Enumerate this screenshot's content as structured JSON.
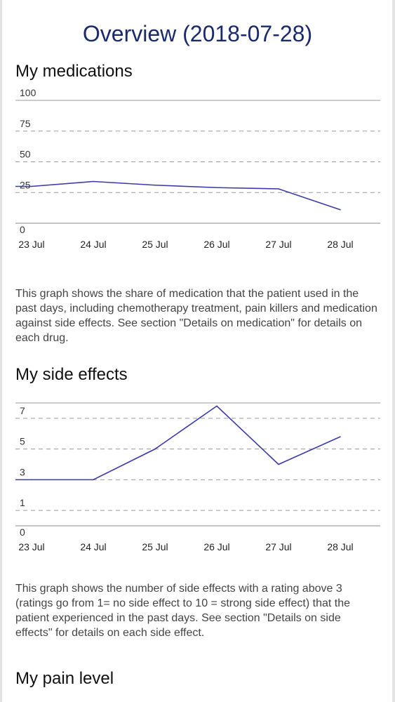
{
  "page": {
    "title": "Overview (2018-07-28)"
  },
  "sections": {
    "medications": {
      "title": "My medications",
      "description": "This graph shows the share of medication that the patient used in the past days, including chemotherapy treatment, pain killers and medication against side effects. See section \"Details on medication\" for details on each drug."
    },
    "side_effects": {
      "title": "My side effects",
      "description": "This graph shows the number of side effects with a rating above 3 (ratings go from 1= no side effect to 10 = strong side effect) that the patient experienced in the past days. See section \"Details on side effects\" for details on each side effect."
    },
    "pain": {
      "title": "My pain level"
    }
  },
  "colors": {
    "line": "#3a3aa8",
    "title": "#1a2a6c",
    "grid": "#9a9a9a"
  },
  "chart_data": [
    {
      "type": "line",
      "categories": [
        "23 Jul",
        "24 Jul",
        "25 Jul",
        "26 Jul",
        "27 Jul",
        "28 Jul"
      ],
      "series": [
        {
          "values": [
            30,
            34,
            31,
            29,
            28,
            11
          ]
        }
      ],
      "yticks": [
        0,
        25,
        50,
        75,
        100
      ],
      "ylim": [
        0,
        100
      ],
      "grid": "dashed"
    },
    {
      "type": "line",
      "categories": [
        "23 Jul",
        "24 Jul",
        "25 Jul",
        "26 Jul",
        "27 Jul",
        "28 Jul"
      ],
      "series": [
        {
          "values": [
            3,
            3,
            5,
            7.8,
            4,
            5.8
          ]
        }
      ],
      "yticks": [
        0,
        1,
        3,
        5,
        7
      ],
      "ylim": [
        0,
        8
      ],
      "grid": "dashed"
    }
  ]
}
